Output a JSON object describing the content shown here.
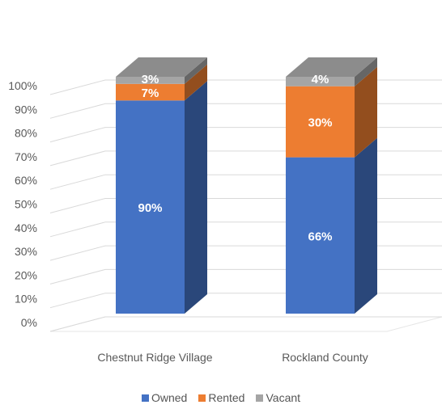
{
  "chart_data": {
    "type": "bar",
    "stacked": true,
    "percent_stacked": true,
    "three_d": true,
    "categories": [
      "Chestnut Ridge Village",
      "Rockland County"
    ],
    "series": [
      {
        "name": "Owned",
        "values": [
          90,
          66
        ],
        "labels": [
          "90%",
          "66%"
        ],
        "color": "#4472C4"
      },
      {
        "name": "Rented",
        "values": [
          7,
          30
        ],
        "labels": [
          "7%",
          "30%"
        ],
        "color": "#ED7D31"
      },
      {
        "name": "Vacant",
        "values": [
          3,
          4
        ],
        "labels": [
          "3%",
          "4%"
        ],
        "color": "#A5A5A5"
      }
    ],
    "y_ticks": [
      "0%",
      "10%",
      "20%",
      "30%",
      "40%",
      "50%",
      "60%",
      "70%",
      "80%",
      "90%",
      "100%"
    ],
    "ylim": [
      0,
      100
    ],
    "grid": true,
    "legend_position": "bottom",
    "title": "",
    "xlabel": "",
    "ylabel": ""
  }
}
